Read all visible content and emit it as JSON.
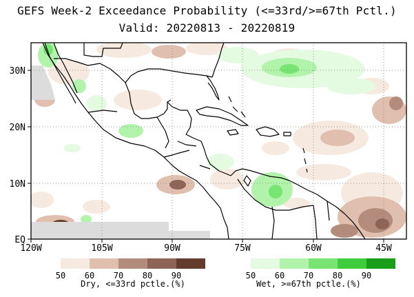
{
  "title": {
    "line1": "GEFS Week-2 Exceedance Probability (<=33rd/>=67th Pctl.)",
    "line2": "Valid: 20220813 - 20220819"
  },
  "map": {
    "lon_labels": [
      "120W",
      "105W",
      "90W",
      "75W",
      "60W",
      "45W"
    ],
    "lat_labels": [
      "30N",
      "20N",
      "10N",
      "EQ"
    ],
    "land_border_color": "#000000",
    "grid_style": "dotted"
  },
  "legend_dry": {
    "colors": [
      "#f6e9df",
      "#e1bfae",
      "#b48c7c",
      "#8e6456",
      "#633c2e"
    ],
    "ticks": [
      "50",
      "60",
      "70",
      "80",
      "90"
    ],
    "caption": "Dry, <=33rd pctle.(%)"
  },
  "legend_wet": {
    "colors": [
      "#e4fbe2",
      "#b2f3ab",
      "#78e472",
      "#3fcc3d",
      "#1a9e1a"
    ],
    "ticks": [
      "50",
      "60",
      "70",
      "80",
      "90"
    ],
    "caption": "Wet, >=67th pctle.(%)"
  }
}
